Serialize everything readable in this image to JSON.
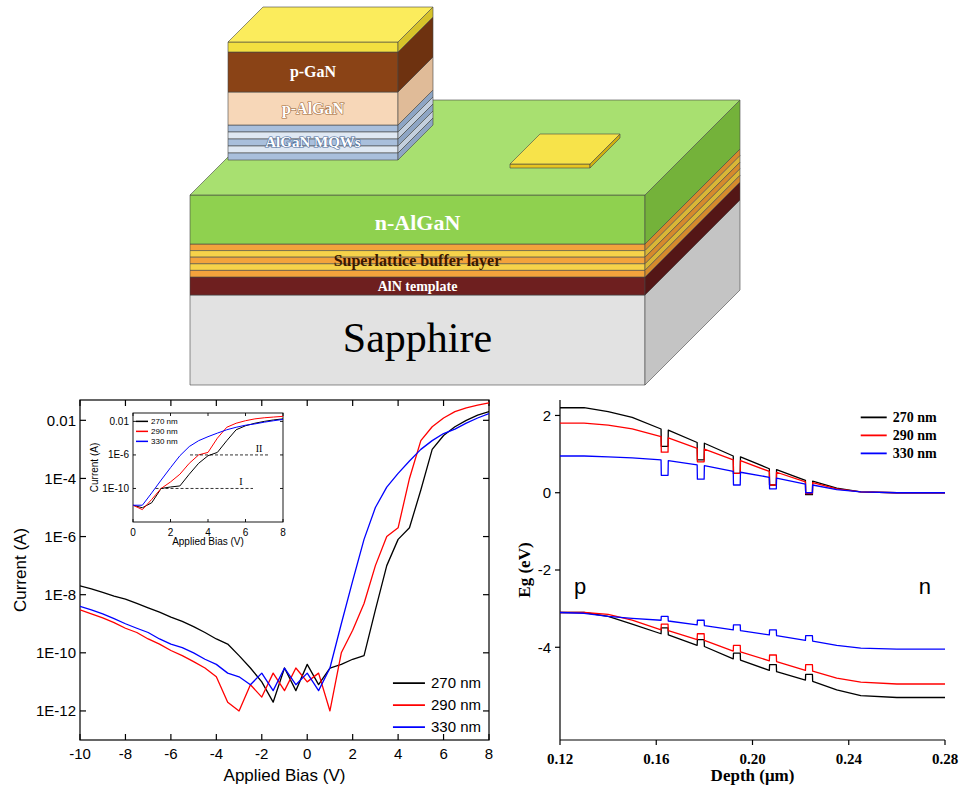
{
  "diagram": {
    "layers": [
      "p-GaN",
      "p-AlGaN",
      "AlGaN MQWs",
      "n-AlGaN",
      "Superlattice buffer layer",
      "AlN template",
      "Sapphire"
    ]
  },
  "chart_data": [
    {
      "type": "line",
      "x_label": "Applied Bias (V)",
      "y_label": "Current (A)",
      "x": [
        -10,
        -9.5,
        -9,
        -8.5,
        -8,
        -7.5,
        -7,
        -6.5,
        -6,
        -5.5,
        -5,
        -4.5,
        -4,
        -3.5,
        -3,
        -2.5,
        -2,
        -1.5,
        -1,
        -0.5,
        0,
        0.5,
        1,
        1.5,
        2,
        2.5,
        3,
        3.5,
        4,
        4.5,
        5,
        5.5,
        6,
        6.5,
        7,
        7.5,
        8
      ],
      "series": [
        {
          "name": "270 nm",
          "color": "#000000",
          "values": [
            2e-08,
            1.6e-08,
            1.2e-08,
            9e-09,
            7e-09,
            5e-09,
            3.5e-09,
            2.5e-09,
            1.7e-09,
            1.2e-09,
            8e-10,
            5e-10,
            3e-10,
            2e-10,
            8e-11,
            3e-11,
            1e-11,
            2e-12,
            3e-11,
            5e-12,
            4e-11,
            8e-12,
            3e-11,
            4e-11,
            6e-11,
            8e-11,
            3e-09,
            1e-07,
            8e-07,
            2e-06,
            4e-05,
            0.001,
            0.003,
            0.006,
            0.01,
            0.015,
            0.02
          ]
        },
        {
          "name": "290 nm",
          "color": "#ff0000",
          "values": [
            3e-09,
            2.2e-09,
            1.6e-09,
            1.1e-09,
            7e-10,
            5e-10,
            3e-10,
            2e-10,
            1.2e-10,
            8e-11,
            5e-11,
            3e-11,
            1.5e-11,
            2e-12,
            1e-12,
            8e-12,
            3e-12,
            2e-11,
            5e-12,
            3e-11,
            1e-11,
            2e-11,
            1e-12,
            1e-10,
            6e-10,
            5e-09,
            1e-07,
            1e-06,
            2e-06,
            0.0001,
            0.002,
            0.006,
            0.012,
            0.02,
            0.027,
            0.033,
            0.04
          ]
        },
        {
          "name": "330 nm",
          "color": "#0000ff",
          "values": [
            4e-09,
            3e-09,
            2.2e-09,
            1.5e-09,
            1e-09,
            7e-10,
            5e-10,
            3e-10,
            2e-10,
            1.5e-10,
            1e-10,
            6e-11,
            4e-11,
            2e-11,
            1.5e-11,
            8e-12,
            2e-11,
            5e-12,
            3e-11,
            8e-12,
            2e-11,
            5e-12,
            3e-11,
            1e-09,
            3e-08,
            8e-07,
            1e-05,
            5e-05,
            0.00015,
            0.0004,
            0.001,
            0.002,
            0.0035,
            0.005,
            0.008,
            0.012,
            0.017
          ]
        }
      ],
      "xlim": [
        -10,
        8
      ],
      "ylim": [
        1e-13,
        0.05
      ],
      "xticks": [
        -10,
        -8,
        -6,
        -4,
        -2,
        0,
        2,
        4,
        6,
        8
      ],
      "yticks": [
        0.01,
        {
          "value": 0.0001,
          "label": "1E-4"
        },
        {
          "value": 1e-06,
          "label": "1E-6"
        },
        {
          "value": 1e-08,
          "label": "1E-8"
        },
        {
          "value": 1e-10,
          "label": "1E-10"
        },
        {
          "value": 1e-12,
          "label": "1E-12"
        }
      ],
      "log": "y",
      "legend": "lower right"
    },
    {
      "type": "line",
      "x_label": "Applied Bias (V)",
      "y_label": "Current (A)",
      "x": [
        0,
        0.5,
        1,
        1.5,
        2,
        2.5,
        3,
        3.5,
        4,
        4.5,
        5,
        5.5,
        6,
        6.5,
        7,
        7.5,
        8
      ],
      "series": [
        {
          "name": "270 nm",
          "color": "#000000",
          "values": [
            1e-12,
            5e-13,
            2e-12,
            1e-10,
            1.5e-10,
            2e-10,
            5e-09,
            1e-07,
            8e-07,
            2e-06,
            5e-05,
            0.001,
            0.003,
            0.006,
            0.01,
            0.015,
            0.02
          ]
        },
        {
          "name": "290 nm",
          "color": "#ff0000",
          "values": [
            1e-12,
            3e-13,
            5e-12,
            1e-10,
            6e-10,
            5e-09,
            1e-07,
            1e-06,
            2e-06,
            0.0001,
            0.002,
            0.006,
            0.012,
            0.02,
            0.027,
            0.033,
            0.04
          ]
        },
        {
          "name": "330 nm",
          "color": "#0000ff",
          "values": [
            1e-12,
            1e-12,
            3e-11,
            1e-09,
            3e-08,
            8e-07,
            1e-05,
            5e-05,
            0.00015,
            0.0004,
            0.001,
            0.002,
            0.0035,
            0.005,
            0.008,
            0.012,
            0.017
          ]
        }
      ],
      "xlim": [
        0,
        8
      ],
      "ylim": [
        1e-14,
        0.1
      ],
      "xticks": [
        0,
        2,
        4,
        6,
        8
      ],
      "yticks": [
        0.01,
        {
          "value": 1e-06,
          "label": "1E-6"
        },
        {
          "value": 1e-10,
          "label": "1E-10"
        }
      ],
      "log": "y",
      "legend": "upper left",
      "annotations": [
        {
          "label": "I",
          "y": 1e-10
        },
        {
          "label": "II",
          "y": 1e-06
        }
      ]
    },
    {
      "type": "line",
      "x_label": "Depth (μm)",
      "y_label": "Eg (eV)",
      "x": [
        0.12,
        0.13,
        0.14,
        0.15,
        0.162,
        0.1621,
        0.1649,
        0.165,
        0.177,
        0.1771,
        0.1799,
        0.18,
        0.192,
        0.1921,
        0.1949,
        0.195,
        0.207,
        0.2071,
        0.2099,
        0.21,
        0.222,
        0.2221,
        0.2249,
        0.225,
        0.235,
        0.245,
        0.26,
        0.28
      ],
      "series": [
        {
          "name": "270 nm",
          "color": "#000000",
          "values": [
            2.2,
            2.2,
            2.1,
            1.95,
            1.65,
            1.2,
            1.2,
            1.62,
            1.3,
            0.85,
            0.85,
            1.28,
            0.95,
            0.5,
            0.5,
            0.93,
            0.62,
            0.2,
            0.2,
            0.6,
            0.32,
            -0.05,
            -0.05,
            0.3,
            0.12,
            0.02,
            0,
            0
          ],
          "lower_values": [
            -3.1,
            -3.1,
            -3.2,
            -3.4,
            -3.65,
            -3.5,
            -3.5,
            -3.68,
            -3.95,
            -3.8,
            -3.8,
            -3.98,
            -4.3,
            -4.15,
            -4.15,
            -4.33,
            -4.6,
            -4.45,
            -4.45,
            -4.63,
            -4.85,
            -4.7,
            -4.7,
            -4.88,
            -5.1,
            -5.25,
            -5.3,
            -5.3
          ]
        },
        {
          "name": "290 nm",
          "color": "#ff0000",
          "values": [
            1.8,
            1.8,
            1.75,
            1.65,
            1.45,
            1.05,
            1.05,
            1.42,
            1.15,
            0.8,
            0.8,
            1.13,
            0.85,
            0.5,
            0.5,
            0.83,
            0.55,
            0.2,
            0.2,
            0.53,
            0.28,
            -0.02,
            -0.02,
            0.26,
            0.1,
            0.02,
            0,
            0
          ],
          "lower_values": [
            -3.1,
            -3.1,
            -3.15,
            -3.3,
            -3.55,
            -3.4,
            -3.4,
            -3.57,
            -3.8,
            -3.65,
            -3.65,
            -3.82,
            -4.1,
            -3.95,
            -3.95,
            -4.12,
            -4.35,
            -4.2,
            -4.2,
            -4.37,
            -4.6,
            -4.45,
            -4.45,
            -4.62,
            -4.8,
            -4.9,
            -4.95,
            -4.95
          ]
        },
        {
          "name": "330 nm",
          "color": "#0000ff",
          "values": [
            0.95,
            0.95,
            0.93,
            0.9,
            0.85,
            0.45,
            0.45,
            0.83,
            0.72,
            0.35,
            0.35,
            0.7,
            0.55,
            0.2,
            0.2,
            0.53,
            0.4,
            0.1,
            0.1,
            0.38,
            0.22,
            0,
            0,
            0.2,
            0.08,
            0.02,
            0,
            0
          ],
          "lower_values": [
            -3.1,
            -3.12,
            -3.2,
            -3.25,
            -3.3,
            -3.2,
            -3.2,
            -3.32,
            -3.42,
            -3.3,
            -3.3,
            -3.44,
            -3.55,
            -3.42,
            -3.42,
            -3.57,
            -3.68,
            -3.55,
            -3.55,
            -3.7,
            -3.82,
            -3.7,
            -3.7,
            -3.84,
            -3.95,
            -4.02,
            -4.05,
            -4.05
          ]
        }
      ],
      "xlim": [
        0.12,
        0.28
      ],
      "ylim": [
        -6.4,
        2.4
      ],
      "xticks": [
        0.12,
        0.16,
        {
          "value": 0.2,
          "label": "0.20"
        },
        0.24,
        0.28
      ],
      "yticks": [
        -4,
        -2,
        0,
        2
      ],
      "legend": "upper right",
      "annotations": [
        {
          "label": "p"
        },
        {
          "label": "n"
        }
      ]
    }
  ]
}
